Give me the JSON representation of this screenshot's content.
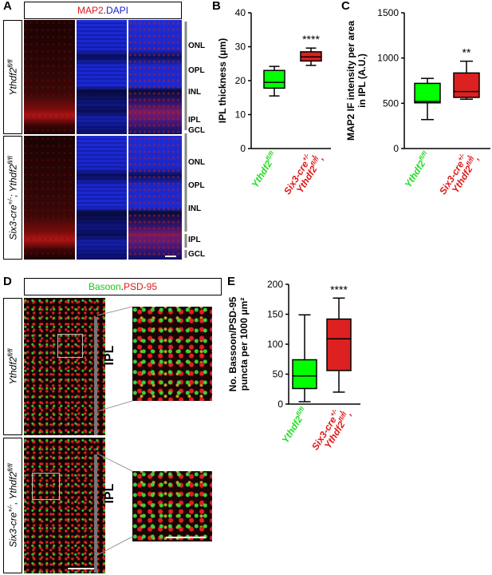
{
  "panels": {
    "A": {
      "letter": "A",
      "header": {
        "red": "MAP2",
        "dot": ".",
        "blue": "DAPI"
      },
      "rows": [
        "Ythdf2fl/fl",
        "Six3-cre+/-; Ythdf2fl/fl"
      ],
      "layers_top": [
        "ONL",
        "OPL",
        "INL",
        "IPL",
        "GCL"
      ],
      "layers_bottom": [
        "ONL",
        "OPL",
        "INL",
        "IPL",
        "GCL"
      ]
    },
    "B": {
      "letter": "B"
    },
    "C": {
      "letter": "C"
    },
    "D": {
      "letter": "D",
      "header": {
        "green": "Basoon",
        "dot": ".",
        "red": "PSD-95"
      },
      "ipl_label": "IPL"
    },
    "E": {
      "letter": "E"
    }
  },
  "colors": {
    "ctrl": "#22dd22",
    "ko": "#e01818",
    "ko_fill": "#dd2020",
    "ctrl_fill": "#00ff00"
  },
  "groups": {
    "ctrl": {
      "base": "Ythdf2",
      "sup": "fl/fl"
    },
    "ko": {
      "line1": "Six3-cre",
      "sup1": "+/-",
      "line2": "Ythdf2",
      "sup2": "fl/fl"
    }
  },
  "chart_data": [
    {
      "type": "box",
      "panel": "B",
      "ylabel": "IPL thickness (μm)",
      "ylim": [
        0,
        40
      ],
      "yticks": [
        "0",
        "10",
        "20",
        "30",
        "40"
      ],
      "categories": [
        "Ythdf2 fl/fl",
        "Six3-cre+/-, Ythdf2 fl/fl"
      ],
      "boxes": [
        {
          "min": 15.5,
          "q1": 17.8,
          "median": 19.5,
          "q3": 23.0,
          "max": 24.2
        },
        {
          "min": 24.5,
          "q1": 25.8,
          "median": 27.0,
          "q3": 28.5,
          "max": 29.6
        }
      ],
      "significance": "****"
    },
    {
      "type": "box",
      "panel": "C",
      "ylabel": "MAP2 IF intensity per area in IPL (A.U.)",
      "ylim": [
        0,
        1500
      ],
      "yticks": [
        "0",
        "500",
        "1000",
        "1500"
      ],
      "categories": [
        "Ythdf2 fl/fl",
        "Six3-cre+/-, Ythdf2 fl/fl"
      ],
      "boxes": [
        {
          "min": 320,
          "q1": 505,
          "median": 520,
          "q3": 720,
          "max": 775
        },
        {
          "min": 545,
          "q1": 565,
          "median": 630,
          "q3": 835,
          "max": 965
        }
      ],
      "significance": "**"
    },
    {
      "type": "box",
      "panel": "E",
      "ylabel": "No. Bassoon/PSD-95 puncta per 1000 μm²",
      "ylim": [
        0,
        200
      ],
      "yticks": [
        "0",
        "50",
        "100",
        "150",
        "200"
      ],
      "categories": [
        "Ythdf2 fl/fl",
        "Six3-cre+/-, Ythdf2 fl/fl"
      ],
      "boxes": [
        {
          "min": 4,
          "q1": 26,
          "median": 47,
          "q3": 74,
          "max": 149
        },
        {
          "min": 20,
          "q1": 56,
          "median": 109,
          "q3": 142,
          "max": 177
        }
      ],
      "significance": "****"
    }
  ]
}
